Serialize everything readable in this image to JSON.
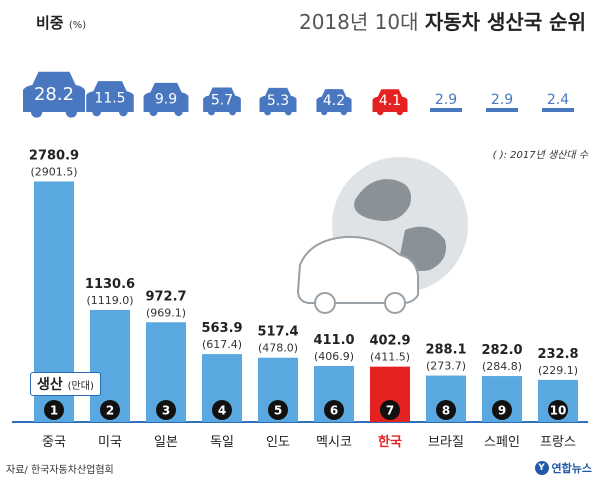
{
  "title_light": "2018년 10대",
  "title_bold": "자동차 생산국 순위",
  "share_label": "비중",
  "share_unit": "(%)",
  "production_label": "생산",
  "production_unit": "(만대)",
  "note": "( ): 2017년 생산대 수",
  "source": "자료/ 한국자동차산업협회",
  "logo_text": "연합뉴스",
  "colors": {
    "bar": "#5aa8e0",
    "highlight": "#e42222",
    "car": "#4a78c0",
    "text": "#222222"
  },
  "chart_data": {
    "type": "bar",
    "categories": [
      "중국",
      "미국",
      "일본",
      "독일",
      "인도",
      "멕시코",
      "한국",
      "브라질",
      "스페인",
      "프랑스"
    ],
    "ranks": [
      "1",
      "2",
      "3",
      "4",
      "5",
      "6",
      "7",
      "8",
      "9",
      "10"
    ],
    "series": [
      {
        "values": [
          2780.9,
          1130.6,
          972.7,
          563.9,
          517.4,
          411.0,
          402.9,
          288.1,
          282.0,
          232.8
        ]
      },
      {
        "values": [
          2901.5,
          1119.0,
          969.1,
          617.4,
          478.0,
          406.9,
          411.5,
          273.7,
          284.8,
          229.1
        ]
      }
    ],
    "share_values": [
      28.2,
      11.5,
      9.9,
      5.7,
      5.3,
      4.2,
      4.1,
      2.9,
      2.9,
      2.4
    ],
    "value_labels": [
      "2780.9",
      "1130.6",
      "972.7",
      "563.9",
      "517.4",
      "411.0",
      "402.9",
      "288.1",
      "282.0",
      "232.8"
    ],
    "prev_labels": [
      "(2901.5)",
      "(1119.0)",
      "(969.1)",
      "(617.4)",
      "(478.0)",
      "(406.9)",
      "(411.5)",
      "(273.7)",
      "(284.8)",
      "(229.1)"
    ],
    "share_labels": [
      "28.2",
      "11.5",
      "9.9",
      "5.7",
      "5.3",
      "4.2",
      "4.1",
      "2.9",
      "2.9",
      "2.4"
    ],
    "highlight_index": 6,
    "ylim": [
      0,
      3000
    ]
  }
}
